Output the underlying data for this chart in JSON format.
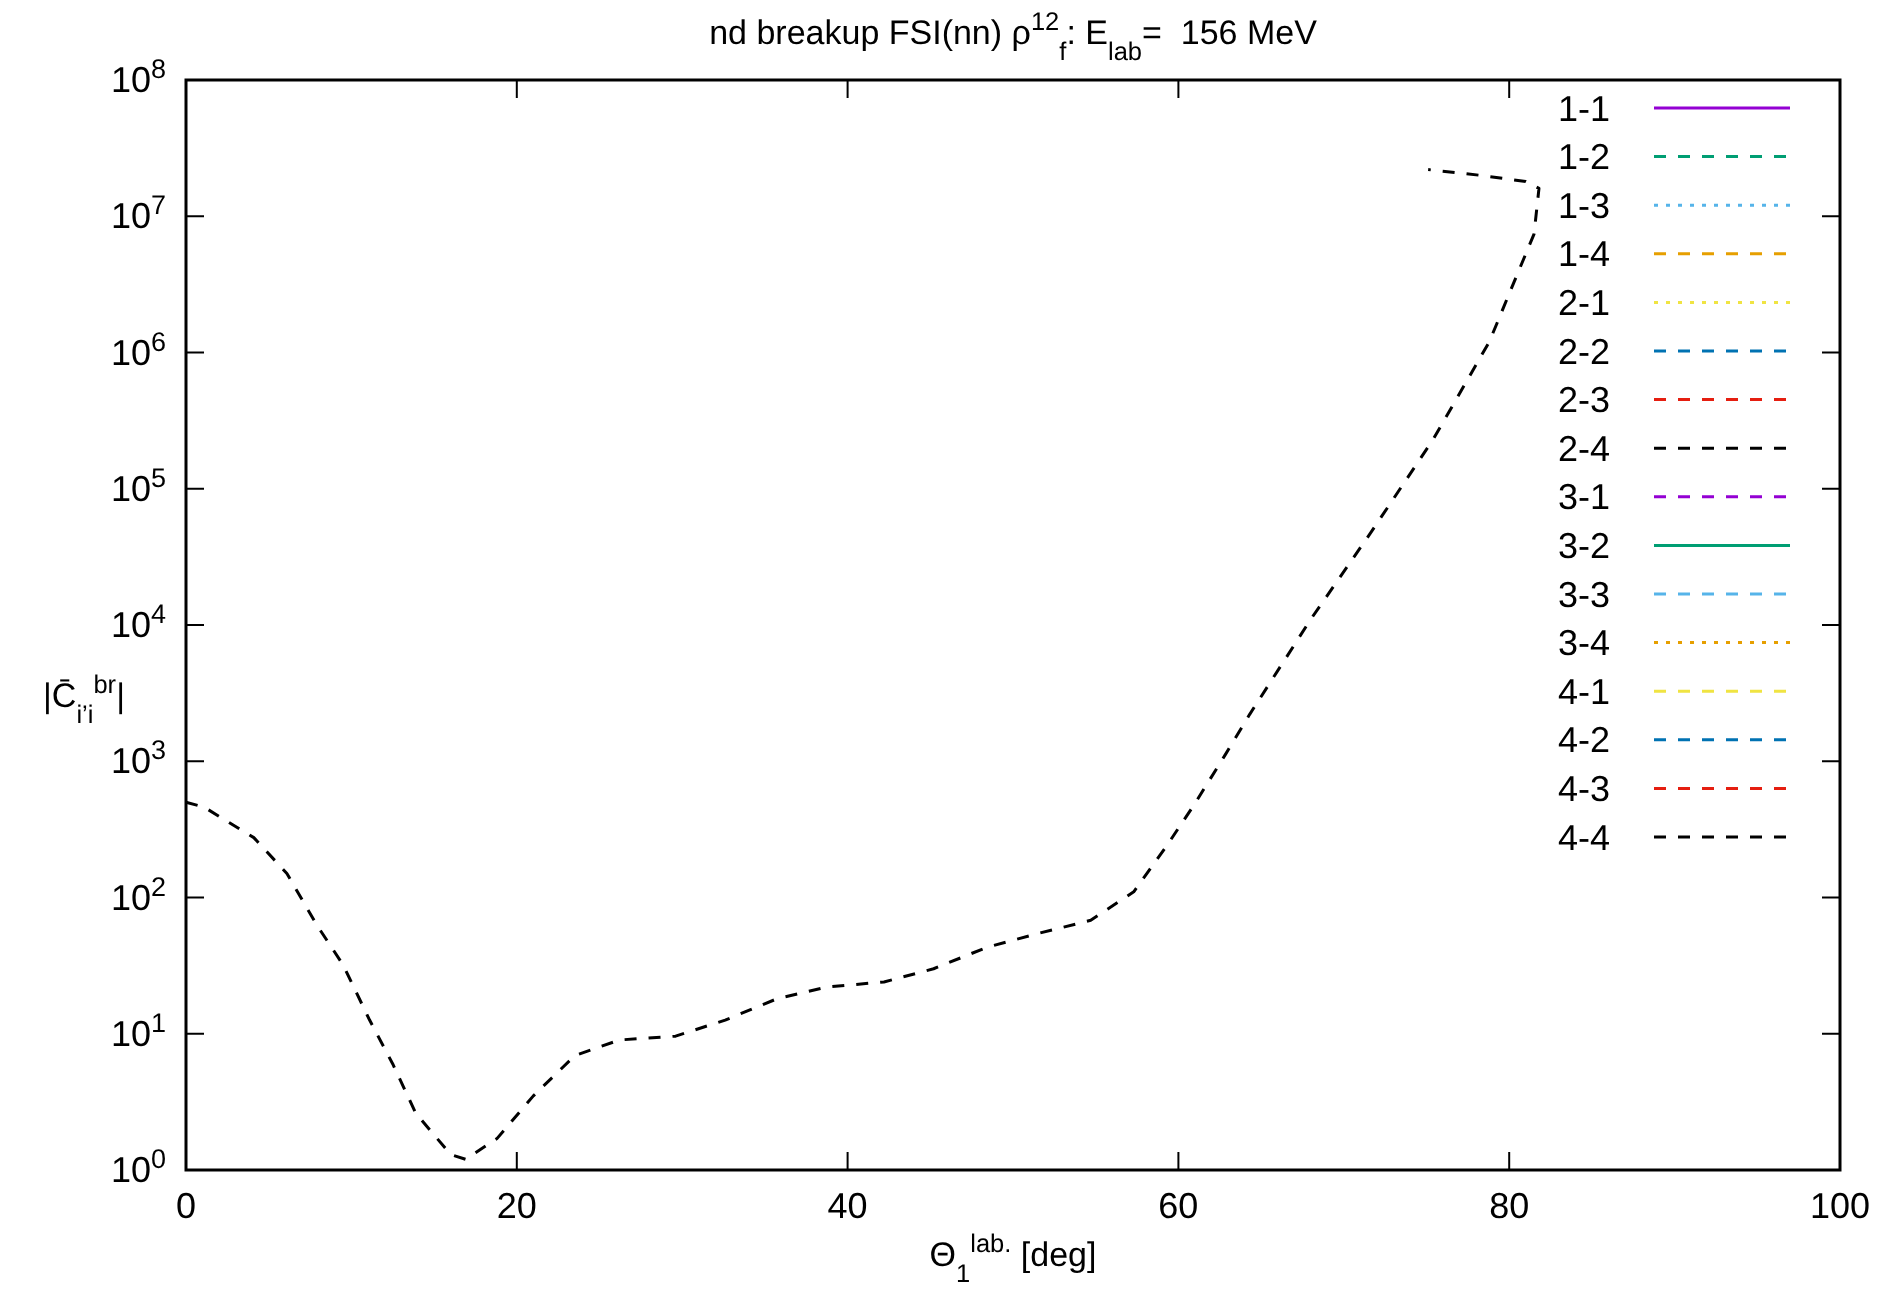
{
  "chart_data": {
    "type": "line",
    "title": "nd breakup FSI(nn) ρ$^{12}$$_{f}$: E$_{lab}$=  156 MeV",
    "xlabel": "Θ$_{1}$$^{lab.}$ [deg]",
    "ylabel": "|C̄$_{i’i}$$^{br}$|",
    "log": "y",
    "legend": "top right",
    "grid": false,
    "xlim": [
      0,
      100
    ],
    "xticks": [
      0,
      20,
      40,
      60,
      80,
      100
    ],
    "ylim": [
      1,
      100000000
    ],
    "yticks": [
      {
        "value": 1,
        "label": "10$^{0}$"
      },
      {
        "value": 10,
        "label": "10$^{1}$"
      },
      {
        "value": 100,
        "label": "10$^{2}$"
      },
      {
        "value": 1000,
        "label": "10$^{3}$"
      },
      {
        "value": 10000,
        "label": "10$^{4}$"
      },
      {
        "value": 100000,
        "label": "10$^{5}$"
      },
      {
        "value": 1000000,
        "label": "10$^{6}$"
      },
      {
        "value": 10000000,
        "label": "10$^{7}$"
      },
      {
        "value": 100000000,
        "label": "10$^{8}$"
      }
    ],
    "series": [
      {
        "name": "1-1",
        "color": "#9400d3",
        "line_style": "solid"
      },
      {
        "name": "1-2",
        "color": "#009e73",
        "line_style": "dashed"
      },
      {
        "name": "1-3",
        "color": "#56b4e9",
        "line_style": "dotted"
      },
      {
        "name": "1-4",
        "color": "#e69f00",
        "line_style": "dashed"
      },
      {
        "name": "2-1",
        "color": "#f0e442",
        "line_style": "dotted"
      },
      {
        "name": "2-2",
        "color": "#0072b2",
        "line_style": "dashed"
      },
      {
        "name": "2-3",
        "color": "#e51e10",
        "line_style": "dashed"
      },
      {
        "name": "2-4",
        "color": "#000000",
        "line_style": "dashed"
      },
      {
        "name": "3-1",
        "color": "#9400d3",
        "line_style": "dashed"
      },
      {
        "name": "3-2",
        "color": "#009e73",
        "line_style": "solid"
      },
      {
        "name": "3-3",
        "color": "#56b4e9",
        "line_style": "dashed"
      },
      {
        "name": "3-4",
        "color": "#e69f00",
        "line_style": "dotted"
      },
      {
        "name": "4-1",
        "color": "#f0e442",
        "line_style": "dashed"
      },
      {
        "name": "4-2",
        "color": "#0072b2",
        "line_style": "dashed"
      },
      {
        "name": "4-3",
        "color": "#e51e10",
        "line_style": "dashed"
      },
      {
        "name": "4-4",
        "color": "#000000",
        "line_style": "dashed",
        "x": [
          0,
          1.1,
          4.1,
          6.1,
          7.9,
          9.5,
          11.1,
          12.5,
          13.9,
          16,
          16.9,
          18.8,
          21,
          23.5,
          26.2,
          29.6,
          32.6,
          35.7,
          38.7,
          42.2,
          45.2,
          48.4,
          51.4,
          54.7,
          57.3,
          59.3,
          61,
          62.8,
          64.3,
          68,
          71.6,
          75.4,
          78.8,
          80,
          81.5,
          81.8,
          81,
          78.2,
          75.1
        ],
        "values": [
          500,
          460,
          275,
          150,
          63,
          32,
          12.6,
          6,
          2.6,
          1.3,
          1.2,
          1.7,
          3.5,
          6.9,
          9,
          9.6,
          12.6,
          18,
          22,
          24,
          30,
          43,
          54,
          68,
          110,
          240,
          490,
          1100,
          2200,
          11000,
          47000,
          230000,
          1200000,
          2700000,
          7400000,
          16000000,
          18000000,
          20000000,
          22000000
        ]
      }
    ]
  }
}
